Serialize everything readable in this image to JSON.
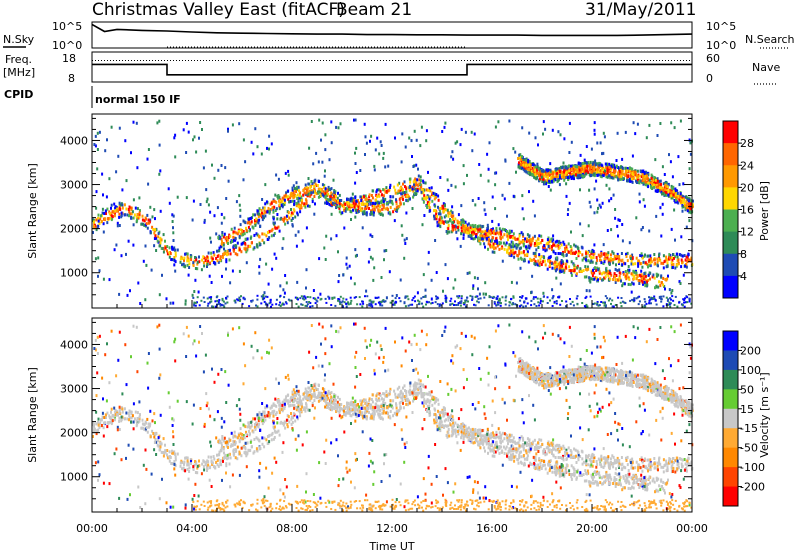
{
  "header": {
    "title": "Christmas Valley East (fitACF)",
    "beam": "Beam 21",
    "date": "31/May/2011"
  },
  "strip_labels": {
    "nsky": "N.Sky",
    "freq_line1": "Freq.",
    "freq_line2": "[MHz]",
    "cpid": "CPID",
    "nsearch": "N.Search",
    "nave": "Nave",
    "cpid_value": "normal 150 IF"
  },
  "colors": {
    "power": [
      "#0000ff",
      "#1e4bb4",
      "#2e8b57",
      "#4caf50",
      "#ffd700",
      "#ff9900",
      "#ff6600",
      "#ff0000"
    ],
    "velocity": [
      "#0000ff",
      "#1e4bb4",
      "#2e8b57",
      "#66cc33",
      "#c8c8c8",
      "#ffaa33",
      "#ff8800",
      "#ff4400",
      "#ff0000"
    ]
  },
  "chart_data": [
    {
      "type": "line",
      "panel": "noise",
      "ylim": [
        1,
        100000
      ],
      "log_scale": true,
      "left_tick_labels": [
        "10^5",
        "10^0"
      ],
      "right_tick_labels": [
        "10^5",
        "10^0"
      ],
      "x": [
        0,
        0.5,
        1,
        2,
        3,
        4,
        5,
        6,
        7,
        8,
        9,
        10,
        11,
        12,
        13,
        14,
        15,
        16,
        17,
        18,
        19,
        20,
        21,
        22,
        23,
        24
      ],
      "series": [
        {
          "name": "N.Sky",
          "values": [
            80000,
            2000,
            6000,
            3500,
            2500,
            1500,
            1000,
            800,
            700,
            600,
            500,
            500,
            400,
            400,
            350,
            350,
            300,
            300,
            300,
            250,
            250,
            250,
            250,
            300,
            400,
            500
          ]
        },
        {
          "name": "N.Search",
          "values": [
            1,
            1,
            1,
            1,
            1,
            1,
            1,
            1,
            1,
            1,
            1,
            1,
            1,
            1,
            1,
            1,
            1,
            1,
            1,
            1,
            1,
            1,
            1,
            1,
            1,
            1
          ]
        }
      ]
    },
    {
      "type": "line",
      "panel": "frequency",
      "left_ylim": [
        8,
        18
      ],
      "right_ylim": [
        0,
        60
      ],
      "left_tick_labels": [
        "18",
        "8"
      ],
      "right_tick_labels": [
        "60",
        "0"
      ],
      "x": [
        0,
        3,
        3,
        15,
        15,
        24
      ],
      "series": [
        {
          "name": "Freq.",
          "values": [
            14,
            14,
            10,
            10,
            14,
            14
          ]
        },
        {
          "name": "Nave",
          "values": [
            45,
            45,
            45,
            45,
            45,
            45
          ]
        }
      ]
    },
    {
      "type": "heatmap",
      "panel": "power",
      "xlabel": "",
      "ylabel": "Slant Range [km]",
      "yticks": [
        1000,
        2000,
        3000,
        4000
      ],
      "ylim": [
        200,
        4600
      ],
      "colorbar_label": "Power [dB]",
      "colorbar_ticks": [
        "28",
        "24",
        "20",
        "16",
        "12",
        "8",
        "4"
      ],
      "colorbar_range": [
        0,
        32
      ]
    },
    {
      "type": "heatmap",
      "panel": "velocity",
      "xlabel": "Time UT",
      "ylabel": "Slant Range [km]",
      "yticks": [
        1000,
        2000,
        3000,
        4000
      ],
      "ylim": [
        200,
        4600
      ],
      "colorbar_label": "Velocity [m s⁻¹]",
      "colorbar_ticks": [
        "200",
        "100",
        "50",
        "15",
        "-15",
        "-50",
        "-100",
        "-200"
      ],
      "x_tick_labels": [
        "00:00",
        "04:00",
        "08:00",
        "12:00",
        "16:00",
        "20:00",
        "00:00"
      ],
      "x_ticks": [
        0,
        4,
        8,
        12,
        16,
        20,
        24
      ]
    }
  ],
  "echo_bands": [
    {
      "name": "morning-arc",
      "pts": [
        [
          0,
          2100
        ],
        [
          0.5,
          2300
        ],
        [
          1.3,
          2500
        ],
        [
          2.2,
          2200
        ],
        [
          3,
          1500
        ],
        [
          4,
          1250
        ],
        [
          5.5,
          1450
        ],
        [
          7,
          1900
        ],
        [
          8,
          2400
        ],
        [
          9,
          2900
        ],
        [
          10,
          2500
        ],
        [
          11,
          2700
        ],
        [
          12,
          2900
        ],
        [
          13,
          3100
        ],
        [
          14.5,
          2200
        ],
        [
          16,
          1650
        ],
        [
          18,
          1300
        ],
        [
          20,
          1000
        ],
        [
          22,
          900
        ],
        [
          23,
          800
        ]
      ]
    },
    {
      "name": "upper-arc",
      "pts": [
        [
          5,
          1700
        ],
        [
          6,
          2000
        ],
        [
          7,
          2500
        ],
        [
          8,
          2800
        ],
        [
          9,
          3000
        ],
        [
          10,
          2600
        ],
        [
          11,
          2500
        ],
        [
          12,
          2500
        ],
        [
          13,
          3000
        ],
        [
          14,
          2100
        ],
        [
          15,
          2000
        ],
        [
          16,
          1900
        ],
        [
          18,
          1700
        ],
        [
          20,
          1400
        ],
        [
          22,
          1300
        ],
        [
          24,
          1300
        ]
      ]
    },
    {
      "name": "evening-arc",
      "pts": [
        [
          17,
          3600
        ],
        [
          18,
          3200
        ],
        [
          19,
          3300
        ],
        [
          20,
          3400
        ],
        [
          21,
          3300
        ],
        [
          22,
          3200
        ],
        [
          23,
          2900
        ],
        [
          24,
          2500
        ]
      ]
    }
  ]
}
